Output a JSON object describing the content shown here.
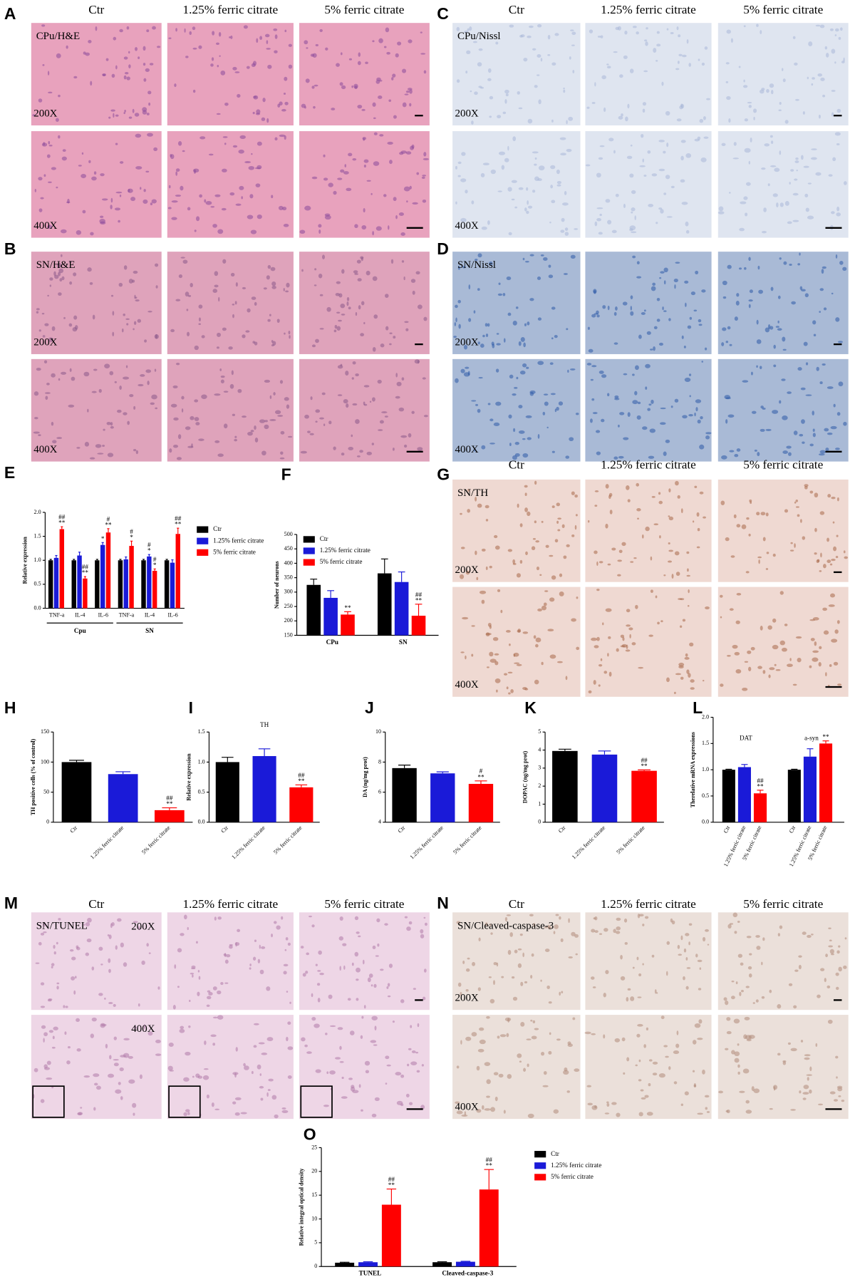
{
  "panels": [
    {
      "letter": "A",
      "columns": [
        "Ctr",
        "1.25% ferric citrate",
        "5% ferric citrate"
      ],
      "label": "CPu/H&E",
      "magnifications": [
        "200X",
        "400X"
      ],
      "tint": "#e8a2bd",
      "cells": "#8a4a9a"
    },
    {
      "letter": "B",
      "label": "SN/H&E",
      "magnifications": [
        "200X",
        "400X"
      ],
      "tint": "#dfa3bb",
      "cells": "#8a5a8a"
    },
    {
      "letter": "C",
      "columns": [
        "Ctr",
        "1.25% ferric citrate",
        "5% ferric citrate"
      ],
      "label": "CPu/Nissl",
      "magnifications": [
        "200X",
        "400X"
      ],
      "tint": "#dfe5f0",
      "cells": "#aab8d8"
    },
    {
      "letter": "D",
      "label": "SN/Nissl",
      "magnifications": [
        "200X",
        "400X"
      ],
      "tint": "#a9bad6",
      "cells": "#2e5aa8"
    },
    {
      "letter": "G",
      "columns": [
        "Ctr",
        "1.25% ferric citrate",
        "5% ferric citrate"
      ],
      "label": "SN/TH",
      "magnifications": [
        "200X",
        "400X"
      ],
      "tint": "#efd9d2",
      "cells": "#a86848"
    },
    {
      "letter": "M",
      "columns": [
        "Ctr",
        "1.25% ferric citrate",
        "5% ferric citrate"
      ],
      "label": "SN/TUNEL",
      "magnifications": [
        "200X",
        "400X"
      ],
      "tint": "#eed6e6",
      "cells": "#b07aa8"
    },
    {
      "letter": "N",
      "columns": [
        "Ctr",
        "1.25% ferric citrate",
        "5% ferric citrate"
      ],
      "label": "SN/Cleaved-caspase-3",
      "magnifications": [
        "200X",
        "400X"
      ],
      "tint": "#ebe0da",
      "cells": "#b08a7a"
    }
  ],
  "chart_data": [
    {
      "panel": "E",
      "type": "bar",
      "y_label": "Relative expression",
      "categories": [
        "TNF-a",
        "IL-4",
        "IL-6",
        "TNF-a",
        "IL-4",
        "IL-6"
      ],
      "groups": [
        {
          "label": "Cpu",
          "size": 3
        },
        {
          "label": "SN",
          "size": 3
        }
      ],
      "series": [
        {
          "name": "Ctr",
          "color": "#000000",
          "values": [
            1,
            1,
            1,
            1,
            1,
            1
          ],
          "errors": [
            0.02,
            0.02,
            0.02,
            0.02,
            0.02,
            0.02
          ]
        },
        {
          "name": "1.25% ferric citrate",
          "color": "#1a1ad8",
          "values": [
            1.05,
            1.1,
            1.32,
            1.02,
            1.08,
            0.95
          ],
          "errors": [
            0.05,
            0.07,
            0.05,
            0.05,
            0.04,
            0.06
          ],
          "significance": [
            null,
            null,
            [
              "*"
            ],
            null,
            [
              "#",
              "*"
            ],
            null
          ]
        },
        {
          "name": "5% ferric citrate",
          "color": "#ff0000",
          "values": [
            1.65,
            0.62,
            1.58,
            1.3,
            0.78,
            1.55
          ],
          "errors": [
            0.05,
            0.04,
            0.08,
            0.1,
            0.04,
            0.12
          ],
          "significance": [
            [
              "##",
              "**"
            ],
            [
              "##",
              "**"
            ],
            [
              "#",
              "**"
            ],
            [
              "#",
              "*"
            ],
            [
              "#",
              "*"
            ],
            [
              "##",
              "**"
            ]
          ]
        }
      ],
      "ylim": [
        0,
        2
      ],
      "yticks": [
        {
          "value": 0,
          "label": "0.0"
        },
        0.5,
        {
          "value": 1,
          "label": "1.0"
        },
        1.5,
        {
          "value": 2,
          "label": "2.0"
        }
      ],
      "legend": "right"
    },
    {
      "panel": "F",
      "type": "bar",
      "y_label": "Number of neurons",
      "categories": [
        "CPu",
        "SN"
      ],
      "series": [
        {
          "name": "Ctr",
          "color": "#000000",
          "values": [
            325,
            365
          ],
          "errors": [
            20,
            50
          ]
        },
        {
          "name": "1.25% ferric citrate",
          "color": "#1a1ad8",
          "values": [
            280,
            335
          ],
          "errors": [
            25,
            35
          ]
        },
        {
          "name": "5% ferric citrate",
          "color": "#ff0000",
          "values": [
            222,
            218
          ],
          "errors": [
            10,
            40
          ],
          "significance": [
            [
              "**"
            ],
            [
              "##",
              "**"
            ]
          ]
        }
      ],
      "ylim": [
        150,
        500
      ],
      "yticks": [
        150,
        200,
        250,
        300,
        350,
        400,
        450,
        500
      ],
      "legend": "upper left"
    },
    {
      "panel": "H",
      "type": "bar",
      "y_label": "TH positive cells (% of control)",
      "categories": [
        "Ctr",
        "1.25% ferric citrate",
        "5% ferric citrate"
      ],
      "values": [
        100,
        80,
        20
      ],
      "errors": [
        3,
        4,
        4
      ],
      "significance": [
        null,
        null,
        [
          "##",
          "**"
        ]
      ],
      "colors": [
        "#000000",
        "#1a1ad8",
        "#ff0000"
      ],
      "ylim": [
        0,
        150
      ],
      "yticks": [
        0,
        50,
        100,
        150
      ]
    },
    {
      "panel": "I",
      "type": "bar",
      "title": "TH",
      "y_label": "Relative expression",
      "categories": [
        "Ctr",
        "1.25% ferric citrate",
        "5% ferric citrate"
      ],
      "values": [
        1.0,
        1.1,
        0.58
      ],
      "errors": [
        0.08,
        0.12,
        0.04
      ],
      "significance": [
        null,
        null,
        [
          "##",
          "**"
        ]
      ],
      "colors": [
        "#000000",
        "#1a1ad8",
        "#ff0000"
      ],
      "ylim": [
        0,
        1.5
      ],
      "yticks": [
        {
          "value": 0,
          "label": "0.0"
        },
        0.5,
        {
          "value": 1,
          "label": "1.0"
        },
        1.5
      ]
    },
    {
      "panel": "J",
      "type": "bar",
      "y_label": "DA (ng/mg prot)",
      "categories": [
        "Ctr",
        "1.25% ferric citrate",
        "5% ferric citrate"
      ],
      "values": [
        7.6,
        7.25,
        6.55
      ],
      "errors": [
        0.2,
        0.1,
        0.2
      ],
      "significance": [
        null,
        null,
        [
          "#",
          "**"
        ]
      ],
      "colors": [
        "#000000",
        "#1a1ad8",
        "#ff0000"
      ],
      "ylim": [
        4,
        10
      ],
      "yticks": [
        4,
        6,
        8,
        10
      ]
    },
    {
      "panel": "K",
      "type": "bar",
      "y_label": "DOPAC (ng/mg prot)",
      "categories": [
        "Ctr",
        "1.25% ferric citrate",
        "5% ferric citrate"
      ],
      "values": [
        3.95,
        3.75,
        2.85
      ],
      "errors": [
        0.1,
        0.2,
        0.05
      ],
      "significance": [
        null,
        null,
        [
          "##",
          "**"
        ]
      ],
      "colors": [
        "#000000",
        "#1a1ad8",
        "#ff0000"
      ],
      "ylim": [
        0,
        5
      ],
      "yticks": [
        0,
        1,
        2,
        3,
        4,
        5
      ]
    },
    {
      "panel": "L",
      "type": "bar",
      "y_label": "Therelative mRNA expressions",
      "categories": [
        "DAT",
        "a-syn"
      ],
      "series": [
        {
          "name": "Ctr",
          "color": "#000000",
          "values": [
            1.0,
            1.0
          ],
          "errors": [
            0.01,
            0.01
          ]
        },
        {
          "name": "1.25% ferric citrate",
          "color": "#1a1ad8",
          "values": [
            1.05,
            1.25
          ],
          "errors": [
            0.05,
            0.15
          ]
        },
        {
          "name": "5% ferric citrate",
          "color": "#ff0000",
          "values": [
            0.55,
            1.5
          ],
          "errors": [
            0.06,
            0.05
          ],
          "significance": [
            [
              "##",
              "**"
            ],
            [
              "**"
            ]
          ]
        }
      ],
      "ylim": [
        0,
        2
      ],
      "yticks": [
        {
          "value": 0,
          "label": "0.0"
        },
        0.5,
        {
          "value": 1,
          "label": "1.0"
        },
        1.5,
        {
          "value": 2,
          "label": "2.0"
        }
      ]
    },
    {
      "panel": "O",
      "type": "bar",
      "y_label": "Relative integral optical density",
      "categories": [
        "TUNEL",
        "Cleaved-caspase-3"
      ],
      "series": [
        {
          "name": "Ctr",
          "color": "#000000",
          "values": [
            0.8,
            0.9
          ],
          "errors": [
            0.1,
            0.1
          ]
        },
        {
          "name": "1.25% ferric citrate",
          "color": "#1a1ad8",
          "values": [
            0.9,
            1.0
          ],
          "errors": [
            0.1,
            0.1
          ]
        },
        {
          "name": "5% ferric citrate",
          "color": "#ff0000",
          "values": [
            13,
            16.2
          ],
          "errors": [
            3.3,
            4.2
          ],
          "significance": [
            [
              "##",
              "**"
            ],
            [
              "##",
              "**"
            ]
          ]
        }
      ],
      "ylim": [
        0,
        25
      ],
      "yticks": [
        0,
        5,
        10,
        15,
        20,
        25
      ],
      "legend": "right"
    }
  ]
}
